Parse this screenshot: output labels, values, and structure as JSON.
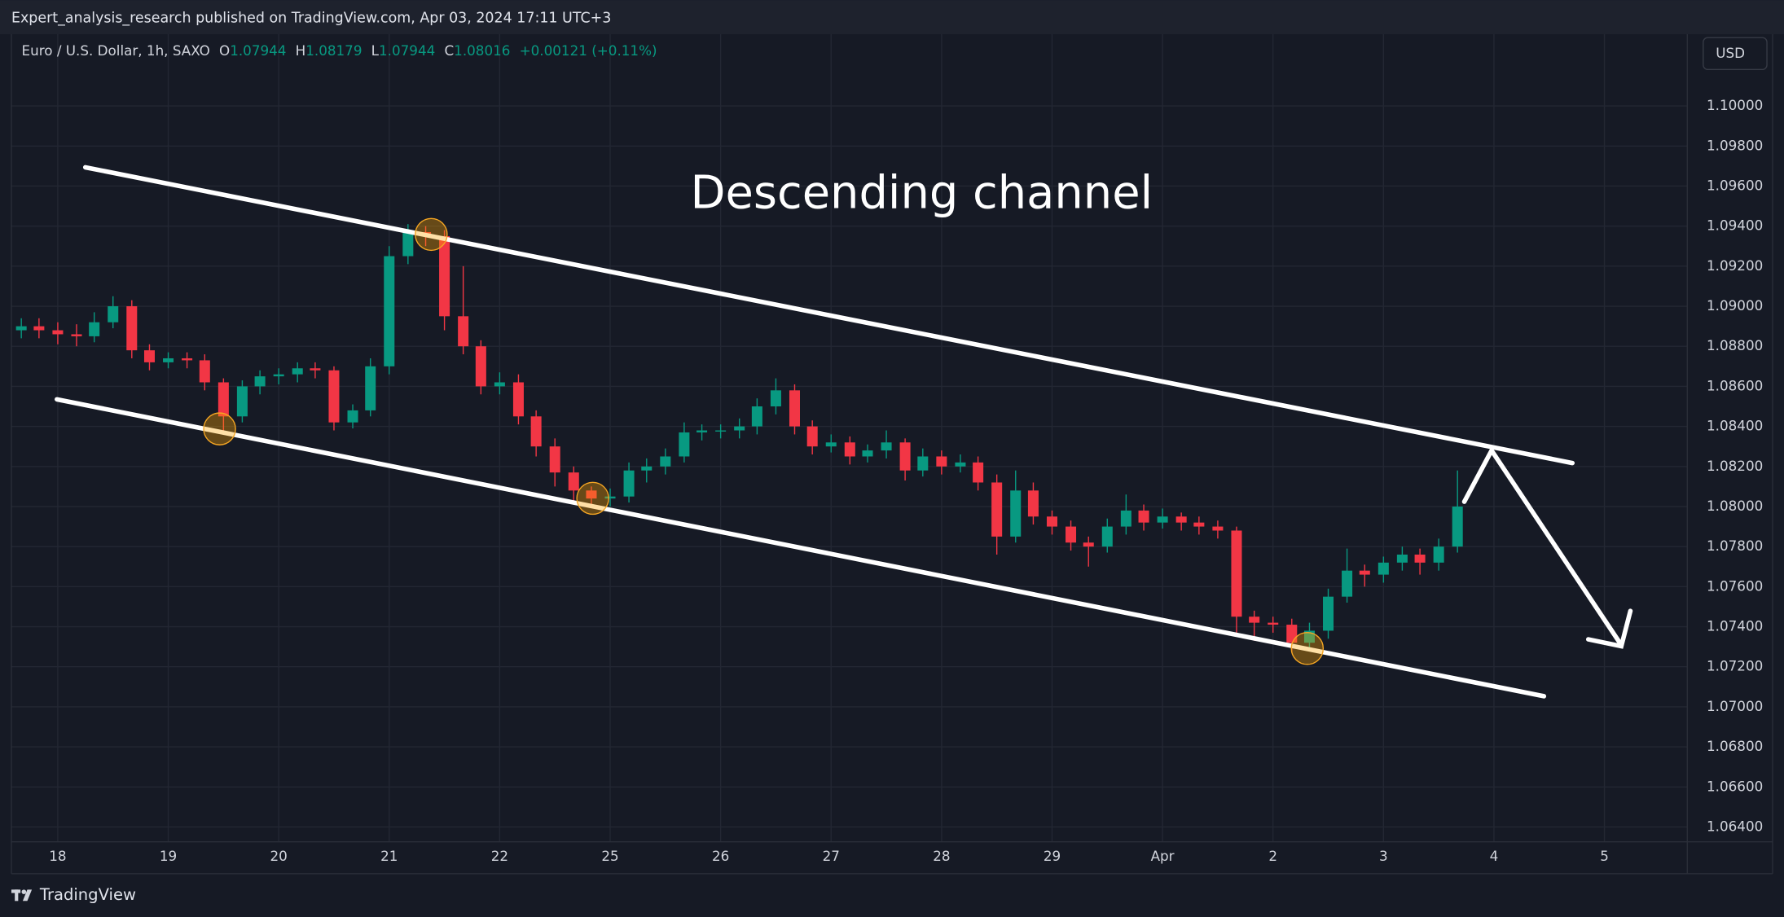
{
  "header": {
    "text": "Expert_analysis_research published on TradingView.com, Apr 03, 2024 17:11 UTC+3"
  },
  "legend": {
    "symbol": "Euro / U.S. Dollar, 1h, SAXO",
    "o_label": "O",
    "o": 1.07944,
    "h_label": "H",
    "h": 1.08179,
    "l_label": "L",
    "l": 1.07944,
    "c_label": "C",
    "c": 1.08016,
    "change": "+0.00121 (+0.11%)"
  },
  "currency_button": "USD",
  "footer": {
    "brand": "TradingView"
  },
  "chart_data": {
    "type": "candlestick",
    "annotation": "Descending channel",
    "up_color": "#089981",
    "down_color": "#f23645",
    "grid": true,
    "xlim": [
      -0.42,
      14.75
    ],
    "ylim": [
      1.06326,
      1.10358
    ],
    "xticks": [
      {
        "value": 0,
        "label": "18"
      },
      {
        "value": 1,
        "label": "19"
      },
      {
        "value": 2,
        "label": "20"
      },
      {
        "value": 3,
        "label": "21"
      },
      {
        "value": 4,
        "label": "22"
      },
      {
        "value": 5,
        "label": "25"
      },
      {
        "value": 6,
        "label": "26"
      },
      {
        "value": 7,
        "label": "27"
      },
      {
        "value": 8,
        "label": "28"
      },
      {
        "value": 9,
        "label": "29"
      },
      {
        "value": 10,
        "label": "Apr"
      },
      {
        "value": 11,
        "label": "2"
      },
      {
        "value": 12,
        "label": "3"
      },
      {
        "value": 13,
        "label": "4"
      },
      {
        "value": 14,
        "label": "5"
      }
    ],
    "yticks": [
      {
        "value": 1.1,
        "label": "1.10000"
      },
      {
        "value": 1.098,
        "label": "1.09800"
      },
      {
        "value": 1.096,
        "label": "1.09600"
      },
      {
        "value": 1.094,
        "label": "1.09400"
      },
      {
        "value": 1.092,
        "label": "1.09200"
      },
      {
        "value": 1.09,
        "label": "1.09000"
      },
      {
        "value": 1.088,
        "label": "1.08800"
      },
      {
        "value": 1.086,
        "label": "1.08600"
      },
      {
        "value": 1.084,
        "label": "1.08400"
      },
      {
        "value": 1.082,
        "label": "1.08200"
      },
      {
        "value": 1.08,
        "label": "1.08000"
      },
      {
        "value": 1.078,
        "label": "1.07800"
      },
      {
        "value": 1.076,
        "label": "1.07600"
      },
      {
        "value": 1.074,
        "label": "1.07400"
      },
      {
        "value": 1.072,
        "label": "1.07200"
      },
      {
        "value": 1.07,
        "label": "1.07000"
      },
      {
        "value": 1.068,
        "label": "1.06800"
      },
      {
        "value": 1.066,
        "label": "1.06600"
      },
      {
        "value": 1.064,
        "label": "1.06400"
      }
    ],
    "x": [
      -0.33,
      -0.17,
      0,
      0.17,
      0.33,
      0.5,
      0.67,
      0.83,
      1,
      1.17,
      1.33,
      1.5,
      1.67,
      1.83,
      2,
      2.17,
      2.33,
      2.5,
      2.67,
      2.83,
      3,
      3.17,
      3.33,
      3.5,
      3.67,
      3.83,
      4,
      4.17,
      4.33,
      4.5,
      4.67,
      4.83,
      5,
      5.17,
      5.33,
      5.5,
      5.67,
      5.83,
      6,
      6.17,
      6.33,
      6.5,
      6.67,
      6.83,
      7,
      7.17,
      7.33,
      7.5,
      7.67,
      7.83,
      8,
      8.17,
      8.33,
      8.5,
      8.67,
      8.83,
      9,
      9.17,
      9.33,
      9.5,
      9.67,
      9.83,
      10,
      10.17,
      10.33,
      10.5,
      10.67,
      10.83,
      11,
      11.17,
      11.33,
      11.5,
      11.67,
      11.83,
      12,
      12.17,
      12.33,
      12.5,
      12.67
    ],
    "open": [
      1.0888,
      1.089,
      1.0888,
      1.0886,
      1.0885,
      1.0892,
      1.09,
      1.0878,
      1.0872,
      1.0874,
      1.0873,
      1.0862,
      1.0845,
      1.086,
      1.0865,
      1.0866,
      1.0869,
      1.0868,
      1.0842,
      1.0848,
      1.087,
      1.0925,
      1.0937,
      1.0935,
      1.0895,
      1.088,
      1.086,
      1.0862,
      1.0845,
      1.083,
      1.0817,
      1.0808,
      1.0804,
      1.0805,
      1.0818,
      1.082,
      1.0825,
      1.0837,
      1.0838,
      1.0838,
      1.084,
      1.085,
      1.0858,
      1.084,
      1.083,
      1.0832,
      1.0825,
      1.0828,
      1.0832,
      1.0818,
      1.0825,
      1.082,
      1.0822,
      1.0812,
      1.0785,
      1.0808,
      1.0795,
      1.079,
      1.0782,
      1.078,
      1.079,
      1.0798,
      1.0792,
      1.0795,
      1.0792,
      1.079,
      1.0788,
      1.0745,
      1.0742,
      1.0741,
      1.0732,
      1.0738,
      1.0755,
      1.0768,
      1.0766,
      1.0772,
      1.0776,
      1.0772,
      1.078
    ],
    "high": [
      1.0894,
      1.0894,
      1.0892,
      1.0891,
      1.0897,
      1.0905,
      1.0903,
      1.0881,
      1.0877,
      1.0877,
      1.0876,
      1.0864,
      1.0863,
      1.0868,
      1.0869,
      1.0872,
      1.0872,
      1.087,
      1.0851,
      1.0874,
      1.093,
      1.0941,
      1.094,
      1.0938,
      1.092,
      1.0883,
      1.0867,
      1.0866,
      1.0848,
      1.0834,
      1.082,
      1.081,
      1.0809,
      1.0822,
      1.0824,
      1.0829,
      1.0842,
      1.0841,
      1.0841,
      1.0844,
      1.0854,
      1.0864,
      1.0861,
      1.0843,
      1.0836,
      1.0835,
      1.0831,
      1.0838,
      1.0834,
      1.0829,
      1.0828,
      1.0826,
      1.0825,
      1.0816,
      1.0818,
      1.0812,
      1.0798,
      1.0793,
      1.0785,
      1.0794,
      1.0806,
      1.0801,
      1.0799,
      1.0797,
      1.0795,
      1.0793,
      1.079,
      1.0748,
      1.0745,
      1.0744,
      1.0742,
      1.0759,
      1.0779,
      1.0771,
      1.0775,
      1.078,
      1.0779,
      1.0784,
      1.0818
    ],
    "low": [
      1.0884,
      1.0884,
      1.0881,
      1.088,
      1.0882,
      1.0889,
      1.0874,
      1.0868,
      1.0869,
      1.0869,
      1.0858,
      1.0837,
      1.0842,
      1.0856,
      1.0861,
      1.0862,
      1.0864,
      1.0838,
      1.0839,
      1.0845,
      1.0866,
      1.0921,
      1.093,
      1.0888,
      1.0876,
      1.0856,
      1.0856,
      1.0841,
      1.0825,
      1.081,
      1.0803,
      1.08,
      1.08,
      1.0802,
      1.0812,
      1.0816,
      1.0822,
      1.0833,
      1.0834,
      1.0834,
      1.0836,
      1.0846,
      1.0836,
      1.0826,
      1.0827,
      1.0821,
      1.0822,
      1.0824,
      1.0813,
      1.0815,
      1.0816,
      1.0817,
      1.0808,
      1.0776,
      1.0782,
      1.0791,
      1.0786,
      1.0778,
      1.077,
      1.0777,
      1.0786,
      1.0788,
      1.0789,
      1.0788,
      1.0786,
      1.0784,
      1.0737,
      1.0733,
      1.0737,
      1.0727,
      1.0728,
      1.0734,
      1.0752,
      1.076,
      1.0762,
      1.0768,
      1.0766,
      1.0768,
      1.0777
    ],
    "close": [
      1.089,
      1.0888,
      1.0886,
      1.0885,
      1.0892,
      1.09,
      1.0878,
      1.0872,
      1.0874,
      1.0873,
      1.0862,
      1.0845,
      1.086,
      1.0865,
      1.0866,
      1.0869,
      1.0868,
      1.0842,
      1.0848,
      1.087,
      1.0925,
      1.0937,
      1.0935,
      1.0895,
      1.088,
      1.086,
      1.0862,
      1.0845,
      1.083,
      1.0817,
      1.0808,
      1.0804,
      1.0805,
      1.0818,
      1.082,
      1.0825,
      1.0837,
      1.0838,
      1.0838,
      1.084,
      1.085,
      1.0858,
      1.084,
      1.083,
      1.0832,
      1.0825,
      1.0828,
      1.0832,
      1.0818,
      1.0825,
      1.082,
      1.0822,
      1.0812,
      1.0785,
      1.0808,
      1.0795,
      1.079,
      1.0782,
      1.078,
      1.079,
      1.0798,
      1.0792,
      1.0795,
      1.0792,
      1.079,
      1.0788,
      1.0745,
      1.0742,
      1.0741,
      1.0732,
      1.0738,
      1.0755,
      1.0768,
      1.0766,
      1.0772,
      1.0776,
      1.0772,
      1.078,
      1.08
    ]
  }
}
